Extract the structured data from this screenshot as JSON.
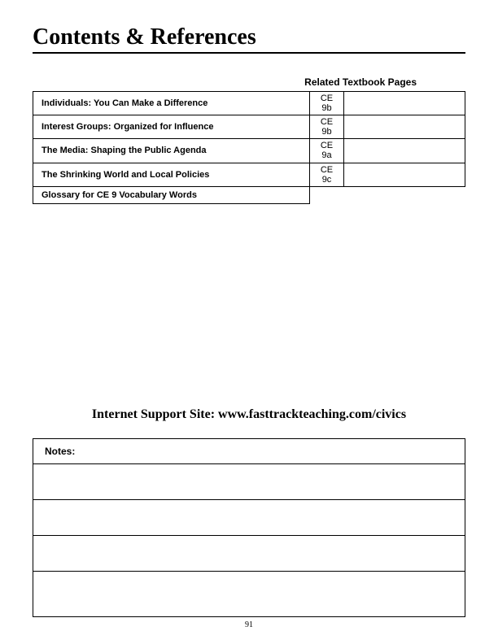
{
  "title": "Contents & References",
  "header_label": "Related Textbook Pages",
  "rows": [
    {
      "topic": "Individuals: You Can Make a Difference",
      "code_line1": "CE",
      "code_line2": "9b"
    },
    {
      "topic": "Interest Groups: Organized for Influence",
      "code_line1": "CE",
      "code_line2": "9b"
    },
    {
      "topic": "The Media: Shaping the Public Agenda",
      "code_line1": "CE",
      "code_line2": "9a"
    },
    {
      "topic": "The Shrinking World and Local Policies",
      "code_line1": "CE",
      "code_line2": "9c"
    },
    {
      "topic": "Glossary for CE 9 Vocabulary Words",
      "code_line1": "",
      "code_line2": ""
    }
  ],
  "support_site": "Internet Support Site:  www.fasttrackteaching.com/civics",
  "notes_label": "Notes:",
  "page_number": "91",
  "colors": {
    "text": "#000000",
    "background": "#ffffff",
    "border": "#000000"
  }
}
